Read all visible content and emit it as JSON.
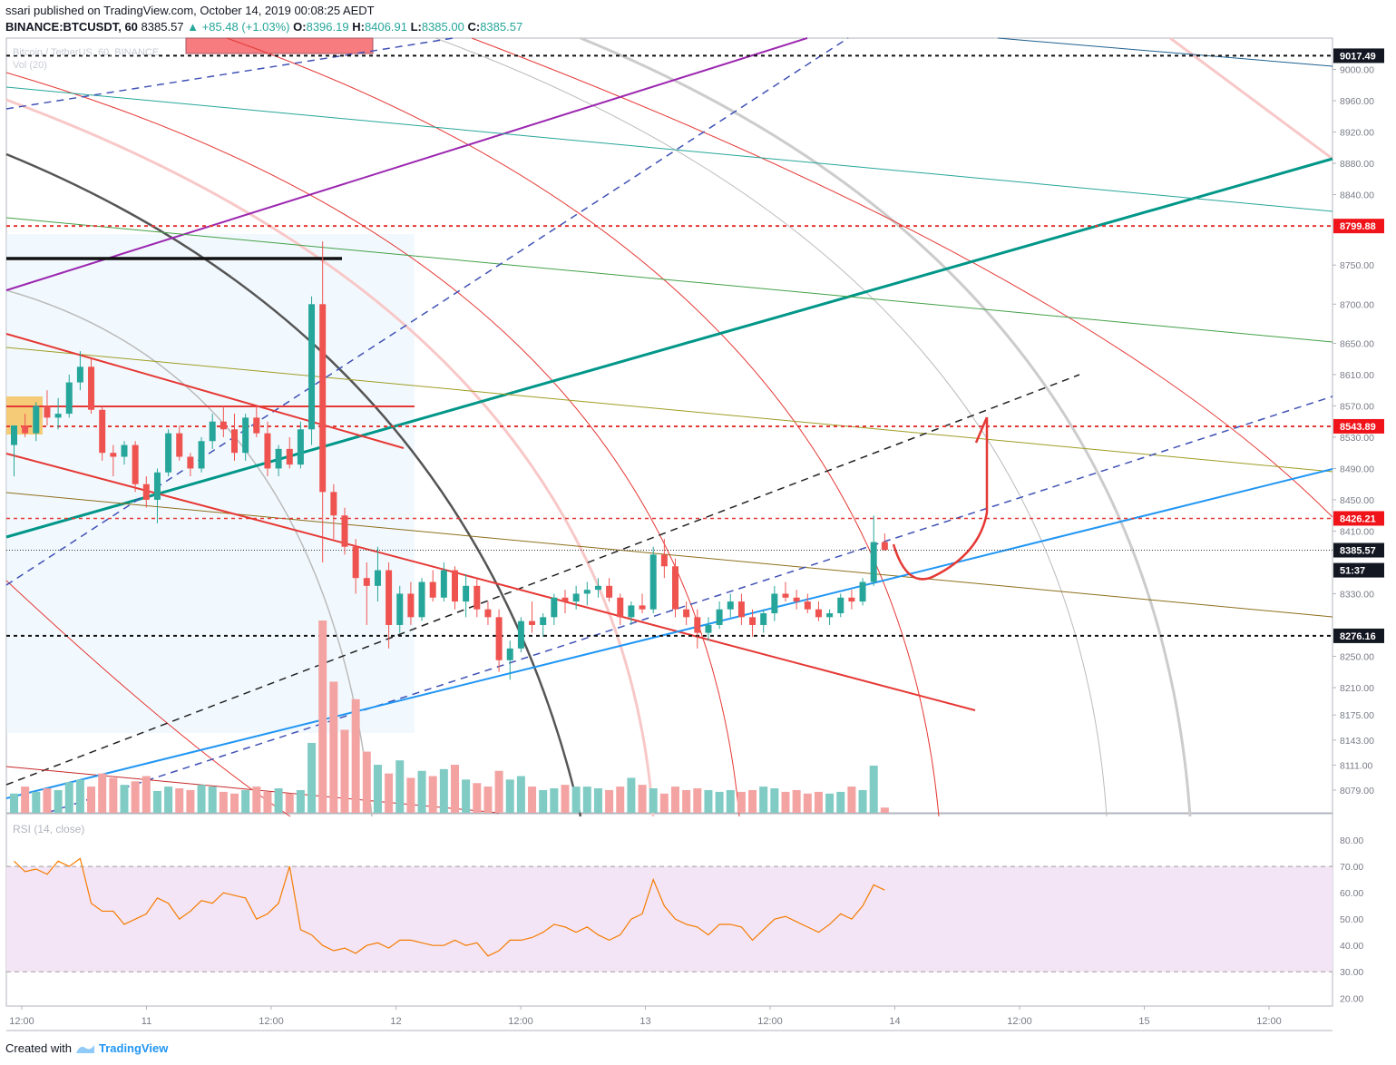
{
  "header": {
    "published": "ssari published on TradingView.com, October 14, 2019 00:08:25 AEDT",
    "symbol": "BINANCE:BTCUSDT, 60",
    "last": "8385.57",
    "change": "+85.48 (+1.03%)",
    "o_label": "O:",
    "o_val": "8396.19",
    "h_label": "H:",
    "h_val": "8406.91",
    "l_label": "L:",
    "l_val": "8385.00",
    "c_label": "C:",
    "c_val": "8385.57"
  },
  "watermark": {
    "line1": "Bitcoin / TetherUS, 60, BINANCE",
    "line2": "Vol (20)"
  },
  "rsi": {
    "label": "RSI (14, close)"
  },
  "footer": {
    "created": "Created with",
    "brand": "TradingView"
  },
  "colors": {
    "up": "#26a69a",
    "down": "#ef5350",
    "vol_up": "#80cbc4",
    "vol_down": "#f4a3a3",
    "rsi_line": "#f57c00",
    "rsi_band": "#f3e5f5",
    "grid": "#f0f3fa"
  },
  "chart_data": {
    "type": "candlestick",
    "y_range": [
      8050,
      9040
    ],
    "price_ticks": [
      "9000.00",
      "8960.00",
      "8920.00",
      "8880.00",
      "8840.00",
      "8750.00",
      "8700.00",
      "8650.00",
      "8610.00",
      "8570.00",
      "8530.00",
      "8490.00",
      "8450.00",
      "8410.00",
      "8330.00",
      "8250.00",
      "8210.00",
      "8175.00",
      "8143.00",
      "8111.00",
      "8079.00"
    ],
    "price_badges": [
      {
        "label": "9017.49",
        "value": 9017.49,
        "style": "black"
      },
      {
        "label": "8799.88",
        "value": 8799.88,
        "style": "red"
      },
      {
        "label": "8543.89",
        "value": 8543.89,
        "style": "red"
      },
      {
        "label": "8426.21",
        "value": 8426.21,
        "style": "red"
      },
      {
        "label": "8385.57",
        "value": 8385.57,
        "style": "black"
      },
      {
        "label": "51:37",
        "value": 8360,
        "style": "black"
      },
      {
        "label": "8276.16",
        "value": 8276.16,
        "style": "black"
      }
    ],
    "time_labels": [
      "12:00",
      "11",
      "12:00",
      "12",
      "12:00",
      "13",
      "12:00",
      "14",
      "12:00",
      "15",
      "12:00"
    ],
    "rsi_ticks": [
      "80.00",
      "70.00",
      "60.00",
      "50.00",
      "40.00",
      "30.00",
      "20.00"
    ],
    "rsi_range": [
      17,
      90
    ],
    "rsi_bands": [
      30,
      70
    ],
    "candles": [
      [
        8520,
        8540,
        8480,
        8545
      ],
      [
        8545,
        8560,
        8530,
        8535
      ],
      [
        8535,
        8575,
        8525,
        8570
      ],
      [
        8570,
        8590,
        8545,
        8555
      ],
      [
        8555,
        8580,
        8540,
        8560
      ],
      [
        8560,
        8610,
        8555,
        8600
      ],
      [
        8600,
        8640,
        8590,
        8620
      ],
      [
        8620,
        8630,
        8560,
        8565
      ],
      [
        8565,
        8570,
        8500,
        8510
      ],
      [
        8510,
        8520,
        8480,
        8505
      ],
      [
        8505,
        8525,
        8495,
        8520
      ],
      [
        8520,
        8525,
        8460,
        8470
      ],
      [
        8470,
        8480,
        8440,
        8450
      ],
      [
        8450,
        8490,
        8420,
        8485
      ],
      [
        8485,
        8540,
        8480,
        8535
      ],
      [
        8535,
        8545,
        8500,
        8505
      ],
      [
        8505,
        8510,
        8480,
        8490
      ],
      [
        8490,
        8530,
        8485,
        8525
      ],
      [
        8525,
        8560,
        8515,
        8550
      ],
      [
        8550,
        8570,
        8530,
        8540
      ],
      [
        8540,
        8560,
        8500,
        8510
      ],
      [
        8510,
        8560,
        8500,
        8555
      ],
      [
        8555,
        8570,
        8530,
        8535
      ],
      [
        8535,
        8550,
        8480,
        8490
      ],
      [
        8490,
        8520,
        8480,
        8515
      ],
      [
        8515,
        8530,
        8490,
        8495
      ],
      [
        8495,
        8550,
        8490,
        8540
      ],
      [
        8540,
        8710,
        8520,
        8700
      ],
      [
        8700,
        8780,
        8370,
        8460
      ],
      [
        8460,
        8470,
        8400,
        8430
      ],
      [
        8430,
        8440,
        8380,
        8390
      ],
      [
        8390,
        8400,
        8330,
        8350
      ],
      [
        8350,
        8370,
        8290,
        8340
      ],
      [
        8340,
        8390,
        8320,
        8360
      ],
      [
        8360,
        8370,
        8260,
        8290
      ],
      [
        8290,
        8340,
        8280,
        8330
      ],
      [
        8330,
        8345,
        8290,
        8300
      ],
      [
        8300,
        8350,
        8295,
        8345
      ],
      [
        8345,
        8360,
        8320,
        8325
      ],
      [
        8325,
        8370,
        8320,
        8360
      ],
      [
        8360,
        8365,
        8310,
        8320
      ],
      [
        8320,
        8355,
        8300,
        8340
      ],
      [
        8340,
        8350,
        8300,
        8310
      ],
      [
        8310,
        8320,
        8290,
        8300
      ],
      [
        8300,
        8310,
        8230,
        8245
      ],
      [
        8245,
        8270,
        8220,
        8260
      ],
      [
        8260,
        8300,
        8255,
        8295
      ],
      [
        8295,
        8320,
        8280,
        8290
      ],
      [
        8290,
        8305,
        8275,
        8300
      ],
      [
        8300,
        8330,
        8290,
        8325
      ],
      [
        8325,
        8335,
        8305,
        8320
      ],
      [
        8320,
        8340,
        8310,
        8330
      ],
      [
        8330,
        8345,
        8315,
        8335
      ],
      [
        8335,
        8350,
        8325,
        8340
      ],
      [
        8340,
        8350,
        8320,
        8325
      ],
      [
        8325,
        8330,
        8290,
        8300
      ],
      [
        8300,
        8320,
        8290,
        8315
      ],
      [
        8315,
        8330,
        8305,
        8310
      ],
      [
        8310,
        8390,
        8305,
        8380
      ],
      [
        8380,
        8400,
        8350,
        8365
      ],
      [
        8365,
        8375,
        8300,
        8310
      ],
      [
        8310,
        8320,
        8290,
        8300
      ],
      [
        8300,
        8310,
        8260,
        8280
      ],
      [
        8280,
        8300,
        8270,
        8290
      ],
      [
        8290,
        8320,
        8285,
        8310
      ],
      [
        8310,
        8330,
        8300,
        8320
      ],
      [
        8320,
        8330,
        8290,
        8300
      ],
      [
        8300,
        8310,
        8275,
        8290
      ],
      [
        8290,
        8310,
        8280,
        8305
      ],
      [
        8305,
        8340,
        8295,
        8330
      ],
      [
        8330,
        8345,
        8320,
        8325
      ],
      [
        8325,
        8335,
        8310,
        8320
      ],
      [
        8320,
        8330,
        8305,
        8310
      ],
      [
        8310,
        8320,
        8295,
        8300
      ],
      [
        8300,
        8310,
        8290,
        8305
      ],
      [
        8305,
        8330,
        8300,
        8325
      ],
      [
        8325,
        8335,
        8310,
        8320
      ],
      [
        8320,
        8350,
        8315,
        8345
      ],
      [
        8345,
        8430,
        8340,
        8396
      ],
      [
        8396,
        8407,
        8385,
        8386
      ]
    ],
    "volumes": [
      22,
      30,
      24,
      28,
      26,
      35,
      38,
      30,
      45,
      40,
      32,
      36,
      42,
      25,
      30,
      28,
      26,
      32,
      30,
      24,
      22,
      26,
      30,
      24,
      28,
      22,
      26,
      80,
      220,
      150,
      95,
      130,
      70,
      55,
      45,
      60,
      40,
      48,
      42,
      50,
      55,
      38,
      34,
      30,
      48,
      38,
      42,
      30,
      26,
      28,
      32,
      30,
      30,
      28,
      26,
      30,
      40,
      32,
      28,
      22,
      30,
      26,
      28,
      26,
      24,
      26,
      24,
      26,
      30,
      28,
      24,
      26,
      22,
      24,
      22,
      24,
      30,
      26,
      54,
      6
    ],
    "rsi": [
      72,
      68,
      69,
      67,
      72,
      70,
      73,
      56,
      53,
      53,
      48,
      50,
      52,
      58,
      56,
      50,
      53,
      57,
      56,
      60,
      59,
      58,
      50,
      52,
      56,
      70,
      46,
      44,
      40,
      38,
      39,
      37,
      40,
      41,
      39,
      42,
      42,
      41,
      40,
      40,
      42,
      40,
      41,
      36,
      38,
      42,
      42,
      43,
      45,
      48,
      47,
      45,
      47,
      44,
      42,
      44,
      50,
      52,
      65,
      55,
      50,
      48,
      47,
      44,
      48,
      48,
      47,
      42,
      46,
      50,
      51,
      49,
      47,
      45,
      48,
      52,
      50,
      55,
      63,
      61
    ]
  }
}
